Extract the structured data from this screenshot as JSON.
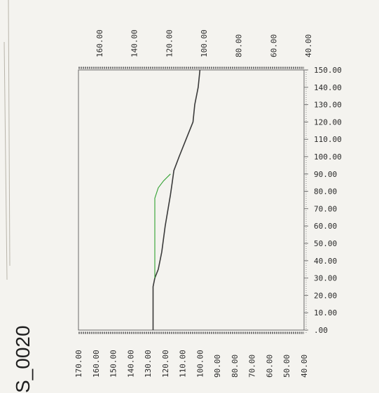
{
  "chart_data": {
    "type": "line",
    "orientation": "rotated-90",
    "side_label": "S_0020",
    "top_axis": {
      "ticks": [
        "160.00",
        "140.00",
        "120.00",
        "100.00",
        "80.00",
        "60.00",
        "40.00"
      ],
      "range": [
        160,
        40
      ]
    },
    "bottom_axis": {
      "ticks": [
        "170.00",
        "160.00",
        "150.00",
        "140.00",
        "130.00",
        "120.00",
        "110.00",
        "100.00",
        "90.00",
        "80.00",
        "70.00",
        "60.00",
        "50.00",
        "40.00"
      ],
      "range": [
        170,
        40
      ]
    },
    "right_axis": {
      "ticks": [
        "150.00",
        "140.00",
        "130.00",
        "120.00",
        "110.00",
        "100.00",
        "90.00",
        "80.00",
        "70.00",
        "60.00",
        "50.00",
        "40.00",
        "30.00",
        "20.00",
        "10.00",
        ".00"
      ],
      "range": [
        0,
        150
      ]
    },
    "series": [
      {
        "color": "#3a3a3a",
        "points": [
          [
            100,
            150
          ],
          [
            101,
            140
          ],
          [
            103,
            130
          ],
          [
            104,
            120
          ],
          [
            108,
            110
          ],
          [
            112,
            100
          ],
          [
            115,
            92
          ],
          [
            116,
            85
          ],
          [
            117,
            78
          ],
          [
            120,
            60
          ],
          [
            122,
            45
          ],
          [
            124,
            35
          ],
          [
            126,
            30
          ],
          [
            127,
            25
          ],
          [
            127,
            10
          ],
          [
            127,
            0
          ]
        ]
      },
      {
        "color": "#2fa02f",
        "points": [
          [
            117,
            90
          ],
          [
            121,
            86
          ],
          [
            124,
            82
          ],
          [
            126,
            76
          ],
          [
            126,
            60
          ],
          [
            126,
            40
          ],
          [
            126,
            30
          ]
        ]
      }
    ]
  }
}
